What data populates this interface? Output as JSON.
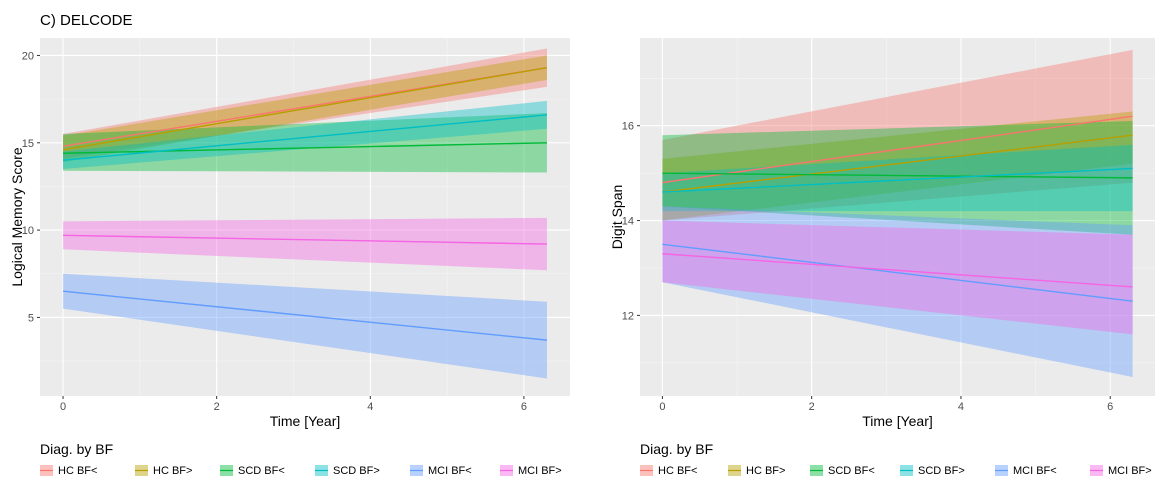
{
  "figure_title": "C) DELCODE",
  "legend": {
    "title": "Diag. by BF",
    "items": [
      {
        "label": "HC BF<",
        "color": "#F8766D"
      },
      {
        "label": "HC BF>",
        "color": "#B79F00"
      },
      {
        "label": "SCD BF<",
        "color": "#00BA38"
      },
      {
        "label": "SCD BF>",
        "color": "#00BFC4"
      },
      {
        "label": "MCI BF<",
        "color": "#619CFF"
      },
      {
        "label": "MCI BF>",
        "color": "#F564E3"
      }
    ]
  },
  "chart_data": [
    {
      "type": "line",
      "xlabel": "Time [Year]",
      "ylabel": "Logical Memory Score",
      "xlim": [
        -0.3,
        6.6
      ],
      "ylim": [
        0.5,
        21
      ],
      "x_ticks": [
        0,
        2,
        4,
        6
      ],
      "y_ticks": [
        5,
        10,
        15,
        20
      ],
      "grid": true,
      "legend_position": "bottom",
      "series": [
        {
          "name": "HC BF<",
          "x": [
            0,
            6.3
          ],
          "y": [
            14.8,
            19.3
          ],
          "lower": [
            14.1,
            18.2
          ],
          "upper": [
            15.5,
            20.4
          ]
        },
        {
          "name": "HC BF>",
          "x": [
            0,
            6.3
          ],
          "y": [
            14.6,
            19.3
          ],
          "lower": [
            13.9,
            18.6
          ],
          "upper": [
            15.4,
            20.0
          ]
        },
        {
          "name": "SCD BF<",
          "x": [
            0,
            6.3
          ],
          "y": [
            14.4,
            15.0
          ],
          "lower": [
            13.4,
            13.3
          ],
          "upper": [
            15.5,
            16.7
          ]
        },
        {
          "name": "SCD BF>",
          "x": [
            0,
            6.3
          ],
          "y": [
            14.0,
            16.6
          ],
          "lower": [
            13.5,
            15.8
          ],
          "upper": [
            14.5,
            17.4
          ]
        },
        {
          "name": "MCI BF<",
          "x": [
            0,
            6.3
          ],
          "y": [
            6.5,
            3.7
          ],
          "lower": [
            5.5,
            1.5
          ],
          "upper": [
            7.5,
            5.9
          ]
        },
        {
          "name": "MCI BF>",
          "x": [
            0,
            6.3
          ],
          "y": [
            9.7,
            9.2
          ],
          "lower": [
            8.9,
            7.7
          ],
          "upper": [
            10.5,
            10.7
          ]
        }
      ]
    },
    {
      "type": "line",
      "xlabel": "Time [Year]",
      "ylabel": "Digit Span",
      "xlim": [
        -0.3,
        6.6
      ],
      "ylim": [
        10.3,
        17.85
      ],
      "x_ticks": [
        0,
        2,
        4,
        6
      ],
      "y_ticks": [
        12,
        14,
        16
      ],
      "grid": true,
      "legend_position": "bottom",
      "series": [
        {
          "name": "HC BF<",
          "x": [
            0,
            6.3
          ],
          "y": [
            14.8,
            16.2
          ],
          "lower": [
            14.0,
            14.8
          ],
          "upper": [
            15.7,
            17.6
          ]
        },
        {
          "name": "HC BF>",
          "x": [
            0,
            6.3
          ],
          "y": [
            14.6,
            15.8
          ],
          "lower": [
            14.0,
            15.2
          ],
          "upper": [
            15.3,
            16.3
          ]
        },
        {
          "name": "SCD BF<",
          "x": [
            0,
            6.3
          ],
          "y": [
            15.0,
            14.9
          ],
          "lower": [
            14.3,
            13.7
          ],
          "upper": [
            15.8,
            16.1
          ]
        },
        {
          "name": "SCD BF>",
          "x": [
            0,
            6.3
          ],
          "y": [
            14.6,
            15.1
          ],
          "lower": [
            14.2,
            14.2
          ],
          "upper": [
            15.0,
            15.6
          ]
        },
        {
          "name": "MCI BF<",
          "x": [
            0,
            6.3
          ],
          "y": [
            13.5,
            12.3
          ],
          "lower": [
            12.7,
            10.7
          ],
          "upper": [
            14.3,
            13.9
          ]
        },
        {
          "name": "MCI BF>",
          "x": [
            0,
            6.3
          ],
          "y": [
            13.3,
            12.6
          ],
          "lower": [
            12.7,
            11.6
          ],
          "upper": [
            14.0,
            13.7
          ]
        }
      ]
    }
  ]
}
